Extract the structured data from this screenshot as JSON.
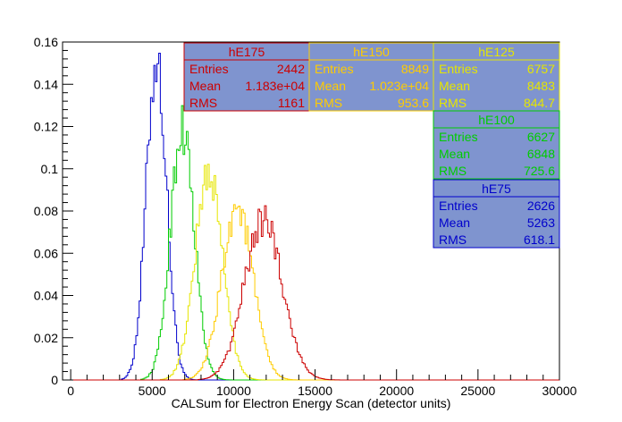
{
  "chart_data": {
    "type": "histogram",
    "title": "",
    "xlabel": "CALSum for Electron Energy Scan (detector units)",
    "ylabel": "",
    "xlim": [
      -500,
      30000
    ],
    "ylim": [
      0,
      0.16
    ],
    "x_ticks": [
      "0",
      "5000",
      "10000",
      "15000",
      "20000",
      "25000",
      "30000"
    ],
    "y_ticks": [
      "0",
      "0.02",
      "0.04",
      "0.06",
      "0.08",
      "0.1",
      "0.12",
      "0.14",
      "0.16"
    ],
    "grid": false,
    "series": [
      {
        "name": "hE75",
        "color": "#0000cc",
        "mean": 5263,
        "rms": 618.1,
        "peak": 0.152
      },
      {
        "name": "hE100",
        "color": "#00cc00",
        "mean": 6848,
        "rms": 725.6,
        "peak": 0.12
      },
      {
        "name": "hE125",
        "color": "#e6e600",
        "mean": 8483,
        "rms": 844.7,
        "peak": 0.098
      },
      {
        "name": "hE150",
        "color": "#ffcc00",
        "mean": 10230,
        "rms": 953.6,
        "peak": 0.082
      },
      {
        "name": "hE175",
        "color": "#cc0000",
        "mean": 11830,
        "rms": 1161,
        "peak": 0.076
      }
    ],
    "stat_boxes": [
      {
        "title": "hE175",
        "color": "#cc0000",
        "entries": "2442",
        "mean": "1.183e+04",
        "rms": "1161"
      },
      {
        "title": "hE150",
        "color": "#ffcc00",
        "entries": "8849",
        "mean": "1.023e+04",
        "rms": "953.6"
      },
      {
        "title": "hE125",
        "color": "#e6e600",
        "entries": "6757",
        "mean": "8483",
        "rms": "844.7"
      },
      {
        "title": "hE100",
        "color": "#00cc00",
        "entries": "6627",
        "mean": "6848",
        "rms": "725.6"
      },
      {
        "title": "hE75",
        "color": "#0000cc",
        "entries": "2626",
        "mean": "5263",
        "rms": "618.1"
      }
    ],
    "stat_labels": {
      "entries": "Entries",
      "mean": "Mean",
      "rms": "RMS"
    }
  }
}
